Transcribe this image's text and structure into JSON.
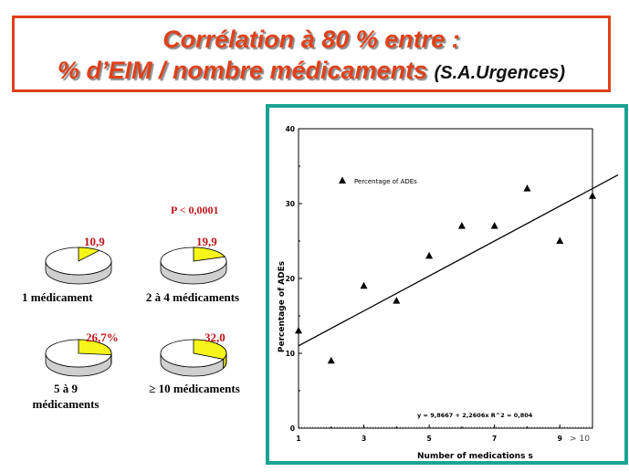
{
  "title": {
    "line1": "Corrélation à 80 % entre :",
    "line2": "% d’EIM / nombre médicaments",
    "line2_sub": "(S.A.Urgences)"
  },
  "colors": {
    "accent": "#e0401a",
    "frame": "#1aa393",
    "pie_slice": "#f5f51a",
    "value": "#c0141c"
  },
  "pvalue": "P < 0,0001",
  "pies": [
    {
      "label": "1 médicament",
      "value_label": "10,9",
      "fraction": 0.109
    },
    {
      "label": "2 à 4 médicaments",
      "value_label": "19,9",
      "fraction": 0.199
    },
    {
      "label": "5 à 9\nmédicaments",
      "value_label": "26,7%",
      "fraction": 0.267
    },
    {
      "label": "≥ 10 médicaments",
      "value_label": "32,0",
      "fraction": 0.32
    }
  ],
  "chart_data": {
    "type": "scatter",
    "xlabel": "Number of medications s",
    "ylabel": "Percentage of ADEs",
    "xlim": [
      1,
      10
    ],
    "ylim": [
      0,
      40
    ],
    "x_ticks": [
      "1",
      "3",
      "5",
      "7",
      "9"
    ],
    "x_tick_values": [
      1,
      3,
      5,
      7,
      9
    ],
    "x_extra_tick": "> 10",
    "y_ticks": [
      "0",
      "10",
      "20",
      "30",
      "40"
    ],
    "y_tick_values": [
      0,
      10,
      20,
      30,
      40
    ],
    "legend": "Percentage of ADEs",
    "legend_position": "top-left",
    "equation": "y = 9,8667 + 2,2606x   R^2 = 0,804",
    "points": [
      {
        "x": 1,
        "y": 13
      },
      {
        "x": 2,
        "y": 9
      },
      {
        "x": 3,
        "y": 19
      },
      {
        "x": 4,
        "y": 17
      },
      {
        "x": 5,
        "y": 23
      },
      {
        "x": 6,
        "y": 27
      },
      {
        "x": 7,
        "y": 27
      },
      {
        "x": 8,
        "y": 32
      },
      {
        "x": 9,
        "y": 25
      },
      {
        "x": 10,
        "y": 31
      }
    ],
    "fit": {
      "intercept": 9.8667,
      "slope": 2.2606
    }
  }
}
